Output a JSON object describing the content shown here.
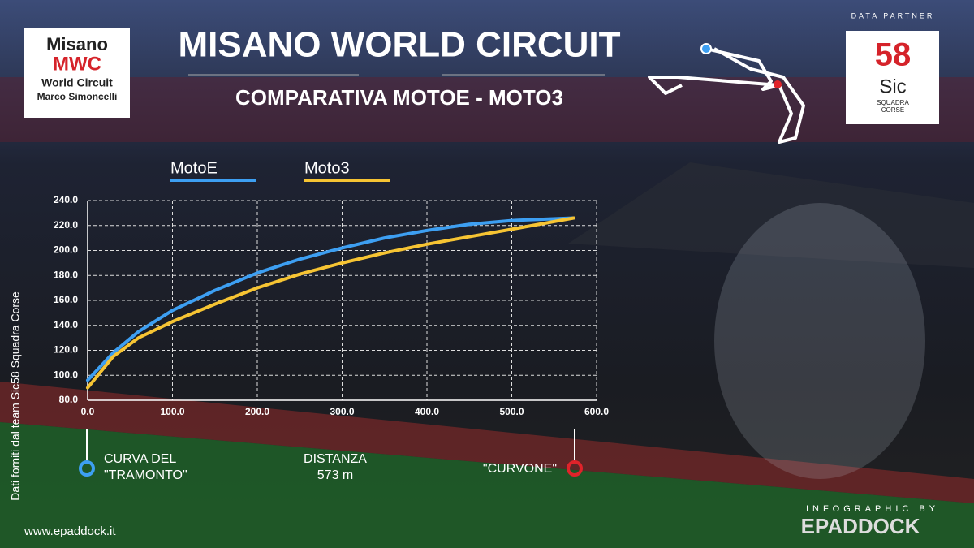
{
  "header": {
    "logo_left": [
      "Misano",
      "World Circuit",
      "Marco Simoncelli"
    ],
    "data_partner": "DATA PARTNER",
    "logo_right": [
      "58",
      "Sic",
      "SQUADRA",
      "CORSE"
    ]
  },
  "chart_data": {
    "type": "line",
    "title": "MISANO WORLD CIRCUIT",
    "subtitle": "COMPARATIVA MOTOE - MOTO3",
    "x": [
      0,
      30,
      60,
      100,
      150,
      200,
      250,
      300,
      350,
      400,
      450,
      500,
      573
    ],
    "series": [
      {
        "name": "MotoE",
        "color": "#3d9ff2",
        "values": [
          96,
          118,
          135,
          152,
          168,
          182,
          193,
          202,
          210,
          216,
          221,
          224,
          226
        ]
      },
      {
        "name": "Moto3",
        "color": "#f6c433",
        "values": [
          90,
          115,
          130,
          143,
          157,
          170,
          181,
          190,
          198,
          205,
          211,
          217,
          226
        ]
      }
    ],
    "xlim": [
      0,
      600
    ],
    "ylim": [
      80,
      240
    ],
    "xticks": [
      {
        "value": 0,
        "label": "0.0"
      },
      {
        "value": 100,
        "label": "100.0"
      },
      {
        "value": 200,
        "label": "200.0"
      },
      {
        "value": 300,
        "label": "300.0"
      },
      {
        "value": 400,
        "label": "400.0"
      },
      {
        "value": 500,
        "label": "500.0"
      },
      {
        "value": 600,
        "label": "600.0"
      }
    ],
    "yticks": [
      {
        "value": 80,
        "label": "80.0"
      },
      {
        "value": 100,
        "label": "100.0"
      },
      {
        "value": 120,
        "label": "120.0"
      },
      {
        "value": 140,
        "label": "140.0"
      },
      {
        "value": 160,
        "label": "160.0"
      },
      {
        "value": 180,
        "label": "180.0"
      },
      {
        "value": 200,
        "label": "200.0"
      },
      {
        "value": 220,
        "label": "220.0"
      },
      {
        "value": 240,
        "label": "240.0"
      }
    ],
    "grid": true,
    "annotations": [
      [
        "CURVA DEL",
        "\"TRAMONTO\""
      ],
      [
        "DISTANZA",
        "573 m"
      ],
      [
        "\"CURVONE\""
      ]
    ]
  },
  "footer": {
    "source": "Dati forniti dal team Sic58 Squadra Corse",
    "website": "www.epaddock.it",
    "credit": "INFOGRAPHIC BY",
    "brand": "EPADDOCK"
  }
}
